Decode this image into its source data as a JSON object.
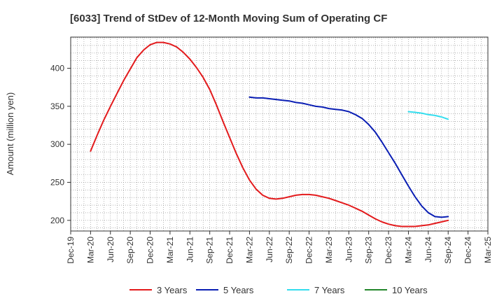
{
  "chart_data": {
    "type": "line",
    "title": "[6033]  Trend of StDev of 12-Month Moving Sum of Operating CF",
    "xlabel": "",
    "ylabel": "Amount (million yen)",
    "x_ticks": [
      "Dec-19",
      "Mar-20",
      "Jun-20",
      "Sep-20",
      "Dec-20",
      "Mar-21",
      "Jun-21",
      "Sep-21",
      "Dec-21",
      "Mar-22",
      "Jun-22",
      "Sep-22",
      "Dec-22",
      "Mar-23",
      "Jun-23",
      "Sep-23",
      "Dec-23",
      "Mar-24",
      "Jun-24",
      "Sep-24",
      "Dec-24",
      "Mar-25"
    ],
    "y_ticks": [
      200,
      250,
      300,
      350,
      400
    ],
    "ylim": [
      186,
      441
    ],
    "grid": true,
    "legend_position": "bottom",
    "series": [
      {
        "name": "3 Years",
        "color": "#e31a1c",
        "x": [
          "Mar-20",
          "Apr-20",
          "May-20",
          "Jun-20",
          "Jul-20",
          "Aug-20",
          "Sep-20",
          "Oct-20",
          "Nov-20",
          "Dec-20",
          "Jan-21",
          "Feb-21",
          "Mar-21",
          "Apr-21",
          "May-21",
          "Jun-21",
          "Jul-21",
          "Aug-21",
          "Sep-21",
          "Oct-21",
          "Nov-21",
          "Dec-21",
          "Jan-22",
          "Feb-22",
          "Mar-22",
          "Apr-22",
          "May-22",
          "Jun-22",
          "Jul-22",
          "Aug-22",
          "Sep-22",
          "Oct-22",
          "Nov-22",
          "Dec-22",
          "Jan-23",
          "Feb-23",
          "Mar-23",
          "Apr-23",
          "May-23",
          "Jun-23",
          "Jul-23",
          "Aug-23",
          "Sep-23",
          "Oct-23",
          "Nov-23",
          "Dec-23",
          "Jan-24",
          "Feb-24",
          "Mar-24",
          "Apr-24",
          "May-24",
          "Jun-24",
          "Jul-24",
          "Aug-24",
          "Sep-24"
        ],
        "values": [
          291,
          312,
          332,
          350,
          367,
          384,
          399,
          414,
          424,
          431,
          434,
          434,
          432,
          428,
          421,
          412,
          401,
          388,
          372,
          352,
          330,
          309,
          288,
          269,
          253,
          241,
          233,
          229,
          228,
          229,
          231,
          233,
          234,
          234,
          233,
          231,
          229,
          226,
          223,
          220,
          216,
          212,
          207,
          202,
          198,
          195,
          193,
          192,
          192,
          192,
          193,
          194,
          196,
          198,
          200
        ]
      },
      {
        "name": "5 Years",
        "color": "#0a1eb4",
        "x": [
          "Mar-22",
          "Apr-22",
          "May-22",
          "Jun-22",
          "Jul-22",
          "Aug-22",
          "Sep-22",
          "Oct-22",
          "Nov-22",
          "Dec-22",
          "Jan-23",
          "Feb-23",
          "Mar-23",
          "Apr-23",
          "May-23",
          "Jun-23",
          "Jul-23",
          "Aug-23",
          "Sep-23",
          "Oct-23",
          "Nov-23",
          "Dec-23",
          "Jan-24",
          "Feb-24",
          "Mar-24",
          "Apr-24",
          "May-24",
          "Jun-24",
          "Jul-24",
          "Aug-24",
          "Sep-24"
        ],
        "values": [
          362,
          361,
          361,
          360,
          359,
          358,
          357,
          355,
          354,
          352,
          350,
          349,
          347,
          346,
          345,
          343,
          339,
          334,
          326,
          316,
          303,
          289,
          275,
          260,
          245,
          231,
          219,
          210,
          205,
          204,
          205
        ]
      },
      {
        "name": "7 Years",
        "color": "#33ddee",
        "x": [
          "Mar-24",
          "Apr-24",
          "May-24",
          "Jun-24",
          "Jul-24",
          "Aug-24",
          "Sep-24"
        ],
        "values": [
          343,
          342,
          341,
          339,
          338,
          336,
          333
        ]
      },
      {
        "name": "10 Years",
        "color": "#22862a",
        "x": [],
        "values": []
      }
    ]
  }
}
